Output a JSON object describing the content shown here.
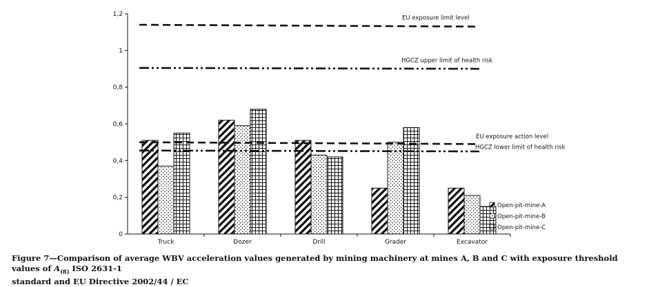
{
  "chart_data": {
    "type": "bar",
    "categories": [
      "Truck",
      "Dozer",
      "Drill",
      "Grader",
      "Excavator"
    ],
    "series": [
      {
        "name": "Open-pit-mine-A",
        "pattern": "diagonal",
        "values": [
          0.51,
          0.62,
          0.51,
          0.25,
          0.25
        ]
      },
      {
        "name": "Open-pit-mine-B",
        "pattern": "dots",
        "values": [
          0.37,
          0.59,
          0.43,
          0.5,
          0.21
        ]
      },
      {
        "name": "Open-pit-mine-C",
        "pattern": "grid",
        "values": [
          0.55,
          0.68,
          0.42,
          0.58,
          0.15
        ]
      }
    ],
    "ylim": [
      0,
      1.2
    ],
    "yticks": [
      "0",
      "0,2",
      "0,4",
      "0,6",
      "0,8",
      "1",
      "1,2"
    ],
    "xlabel": "",
    "ylabel": "",
    "title": "",
    "legend_position": "right",
    "reference_lines": [
      {
        "label": "EU exposure limit level",
        "value_left": 1.14,
        "value_right": 1.13,
        "style": "dashed"
      },
      {
        "label": "HGCZ upper limit of health risk",
        "value_left": 0.905,
        "value_right": 0.9,
        "style": "dash-dot-dot"
      },
      {
        "label": "EU exposure action level",
        "value_left": 0.5,
        "value_right": 0.49,
        "style": "dashed"
      },
      {
        "label": "HGCZ lower limit of health risk",
        "value_left": 0.455,
        "value_right": 0.45,
        "style": "dash-dot-dot"
      }
    ]
  },
  "caption": {
    "label": "Figure 7—",
    "text_before_sym": "Comparison of average WBV acceleration values generated by mining machinery at mines A, B and C with exposure threshold values of ",
    "sym": "A",
    "sym_sub": "(8)",
    "text_after_sym": " ISO 2631-1",
    "line2": "standard and EU Directive 2002/44 / EC"
  }
}
